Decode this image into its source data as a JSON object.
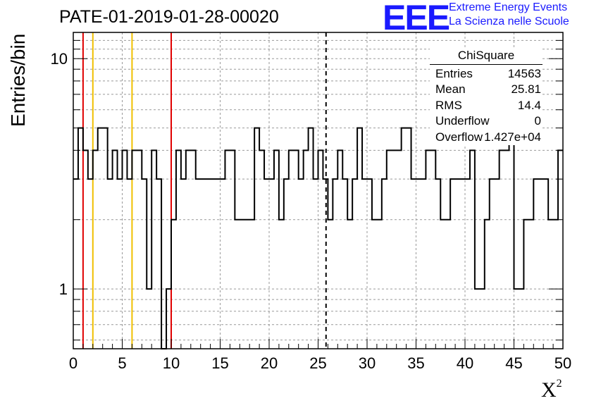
{
  "header": {
    "title": "PATE-01-2019-01-28-00020",
    "logo": "EEE",
    "logo_line1": "Extreme Energy Events",
    "logo_line2": "La Scienza nelle Scuole"
  },
  "stats_box": {
    "title": "ChiSquare",
    "rows": [
      {
        "label": "Entries",
        "value": "14563"
      },
      {
        "label": "Mean",
        "value": "25.81"
      },
      {
        "label": "RMS",
        "value": "14.4"
      },
      {
        "label": "Underflow",
        "value": "0"
      },
      {
        "label": "Overflow",
        "value": "1.427e+04"
      }
    ]
  },
  "chart_data": {
    "type": "histogram",
    "title": "PATE-01-2019-01-28-00020",
    "xlabel": "X",
    "xlabel_sup": "2",
    "ylabel": "Entries/bin",
    "xlim": [
      0,
      50
    ],
    "ylim": [
      0.55,
      13.0
    ],
    "ylog": true,
    "grid": true,
    "x_ticks": [
      "0",
      "5",
      "10",
      "15",
      "20",
      "25",
      "30",
      "35",
      "40",
      "45",
      "50"
    ],
    "y_ticks": [
      "1",
      "10"
    ],
    "bin_width": 0.5,
    "values": [
      3,
      5,
      4,
      3,
      4,
      5,
      5,
      3,
      4,
      3,
      4,
      3,
      4,
      4,
      3,
      1,
      4,
      3,
      0,
      1,
      2,
      4,
      3,
      4,
      4,
      3,
      3,
      3,
      3,
      3,
      3,
      4,
      4,
      2,
      2,
      2,
      2,
      5,
      4,
      3,
      3,
      4,
      2,
      3,
      4,
      4,
      3,
      4,
      5,
      3,
      4,
      3,
      2,
      3,
      4,
      3,
      2,
      3,
      5,
      3,
      3,
      2,
      2,
      3,
      4,
      4,
      4,
      5,
      5,
      3,
      3,
      3,
      4,
      4,
      3,
      2,
      2,
      3,
      3,
      3,
      3,
      4,
      1,
      1,
      2,
      3,
      3,
      4,
      4,
      5,
      1,
      1,
      2,
      2,
      3,
      3,
      3,
      2,
      2,
      4
    ],
    "vertical_lines": [
      {
        "x": 1,
        "color": "#e00000",
        "style": "solid"
      },
      {
        "x": 2,
        "color": "#f0c000",
        "style": "solid"
      },
      {
        "x": 6,
        "color": "#f0c000",
        "style": "solid"
      },
      {
        "x": 10,
        "color": "#e00000",
        "style": "solid"
      },
      {
        "x": 25.81,
        "color": "#000000",
        "style": "dashed"
      }
    ]
  }
}
